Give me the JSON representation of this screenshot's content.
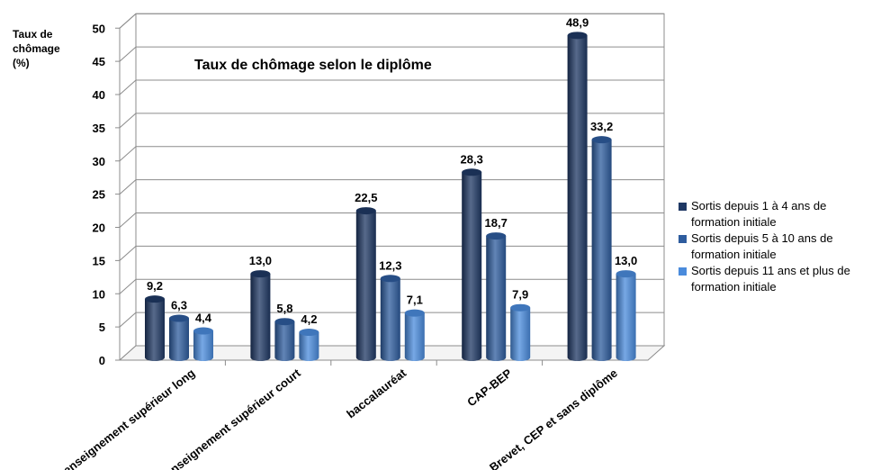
{
  "chart_data": {
    "type": "bar",
    "title": "Taux de chômage  selon le diplôme",
    "ylabel_lines": [
      "Taux de",
      "chômage",
      "(%)"
    ],
    "ylim": [
      0,
      50
    ],
    "yticks": [
      0,
      5,
      10,
      15,
      20,
      25,
      30,
      35,
      40,
      45,
      50
    ],
    "categories": [
      "enseignement supérieur long",
      "enseignement supérieur court",
      "baccalauréat",
      "CAP-BEP",
      "Brevet, CEP et sans diplôme"
    ],
    "series": [
      {
        "name": "Sortis depuis 1 à 4 ans de formation initiale",
        "name_lines": [
          "Sortis depuis 1 à 4 ans de",
          "formation initiale"
        ],
        "values": [
          9.2,
          13.0,
          22.5,
          28.3,
          48.9
        ],
        "labels": [
          "9,2",
          "13,0",
          "22,5",
          "28,3",
          "48,9"
        ],
        "color": "#1f3864"
      },
      {
        "name": "Sortis depuis 5 à 10 ans  de formation initiale",
        "name_lines": [
          "Sortis depuis 5 à 10 ans  de",
          "formation initiale"
        ],
        "values": [
          6.3,
          5.8,
          12.3,
          18.7,
          33.2
        ],
        "labels": [
          "6,3",
          "5,8",
          "12,3",
          "18,7",
          "33,2"
        ],
        "color": "#2e5c9e"
      },
      {
        "name": "Sortis depuis 11 ans et plus de formation initiale",
        "name_lines": [
          "Sortis depuis 11 ans et plus de",
          "formation initiale"
        ],
        "values": [
          4.4,
          4.2,
          7.1,
          7.9,
          13.0
        ],
        "labels": [
          "4,4",
          "4,2",
          "7,1",
          "7,9",
          "13,0"
        ],
        "color": "#4a8bdc"
      }
    ],
    "grid": true,
    "legend_position": "right"
  }
}
